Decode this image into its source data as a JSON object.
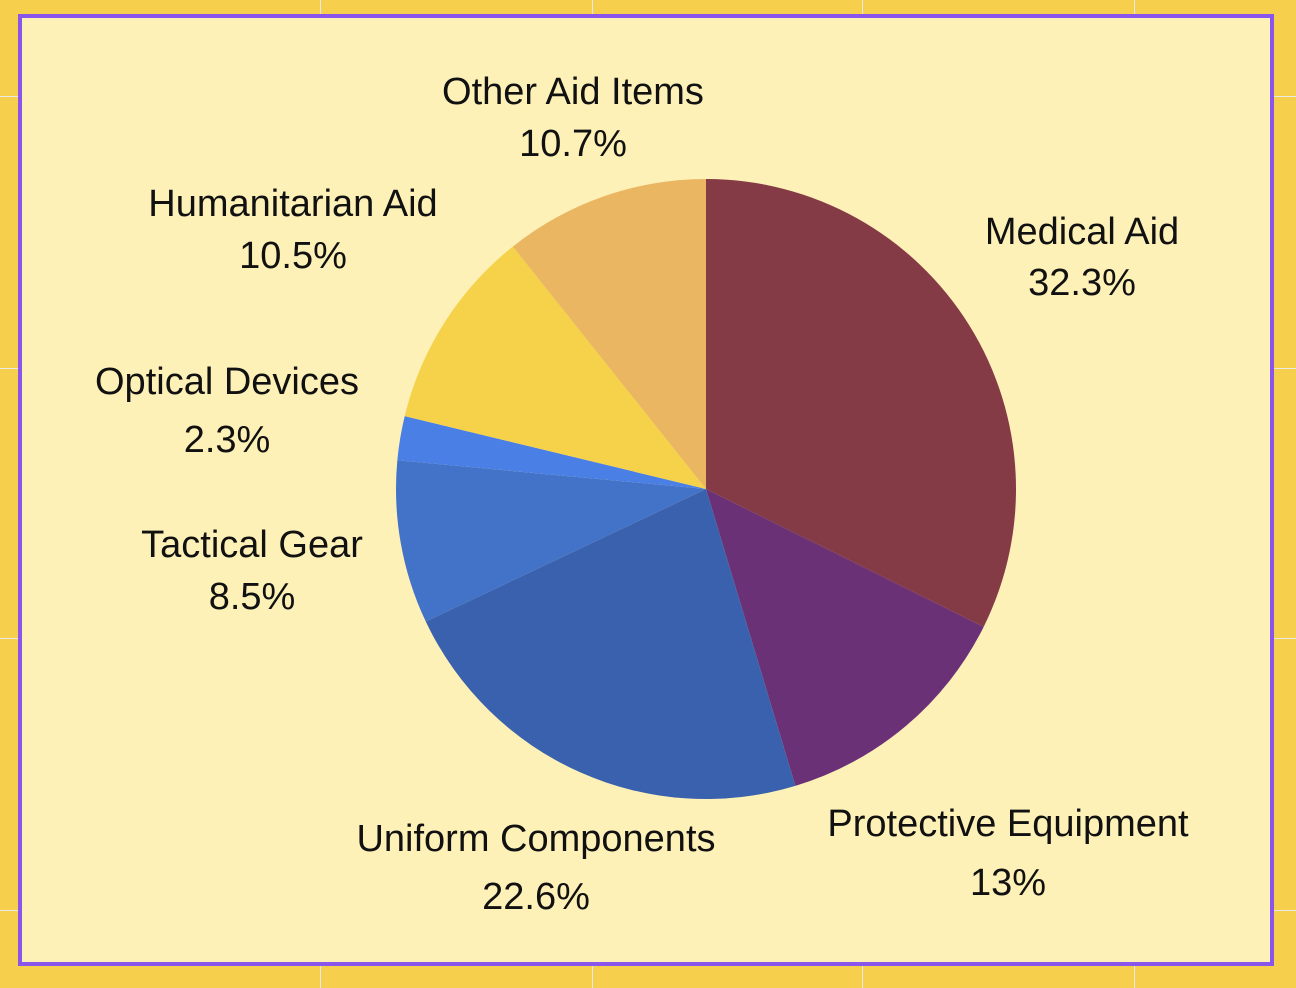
{
  "chart_data": {
    "type": "pie",
    "title": "",
    "start_angle_deg": 0,
    "direction": "clockwise",
    "slices": [
      {
        "label": "Medical Aid",
        "value": 32.3,
        "display": "32.3%",
        "color": "#843b45"
      },
      {
        "label": "Protective Equipment",
        "value": 13,
        "display": "13%",
        "color": "#6b3176"
      },
      {
        "label": "Uniform Components",
        "value": 22.6,
        "display": "22.6%",
        "color": "#3a61ad"
      },
      {
        "label": "Tactical Gear",
        "value": 8.5,
        "display": "8.5%",
        "color": "#4273c8"
      },
      {
        "label": "Optical Devices",
        "value": 2.3,
        "display": "2.3%",
        "color": "#4a7fe6"
      },
      {
        "label": "Humanitarian Aid",
        "value": 10.5,
        "display": "10.5%",
        "color": "#f6d24a"
      },
      {
        "label": "Other Aid Items",
        "value": 10.7,
        "display": "10.7%",
        "color": "#ebb661"
      }
    ]
  },
  "colors": {
    "outer_background": "#f6cf4c",
    "frame_border": "#8a55ea",
    "frame_fill": "#fdf1b8"
  }
}
